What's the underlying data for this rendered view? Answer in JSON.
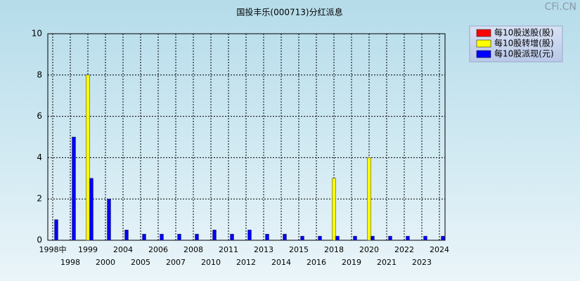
{
  "chart_data": {
    "type": "bar",
    "title": "国投丰乐(000713)分红派息",
    "watermark": "CFi.CN",
    "categories": [
      "1998中",
      "1998",
      "1999",
      "2000",
      "2004",
      "2005",
      "2006",
      "2007",
      "2008",
      "2010",
      "2011",
      "2012",
      "2013",
      "2014",
      "2015",
      "2016",
      "2018",
      "2019",
      "2020",
      "2021",
      "2022",
      "2023",
      "2024"
    ],
    "series": [
      {
        "name": "每10股送股(股)",
        "color": "#ff0000",
        "values": [
          null,
          null,
          null,
          null,
          null,
          null,
          null,
          null,
          null,
          null,
          null,
          null,
          null,
          null,
          null,
          null,
          null,
          null,
          null,
          null,
          null,
          null,
          null
        ]
      },
      {
        "name": "每10股转增(股)",
        "color": "#ffff00",
        "values": [
          null,
          null,
          8,
          null,
          null,
          null,
          null,
          null,
          null,
          null,
          null,
          null,
          null,
          null,
          null,
          null,
          3,
          null,
          4,
          null,
          null,
          null,
          null
        ]
      },
      {
        "name": "每10股派现(元)",
        "color": "#0000ff",
        "values": [
          1,
          5,
          3,
          2,
          0.5,
          0.3,
          0.3,
          0.3,
          0.3,
          0.5,
          0.3,
          0.5,
          0.3,
          0.3,
          0.2,
          0.2,
          0.2,
          0.2,
          0.2,
          0.2,
          0.2,
          0.2,
          0.2
        ]
      }
    ],
    "ylim": [
      0,
      10
    ],
    "yticks": [
      0,
      2,
      4,
      6,
      8,
      10
    ],
    "grid": true
  }
}
